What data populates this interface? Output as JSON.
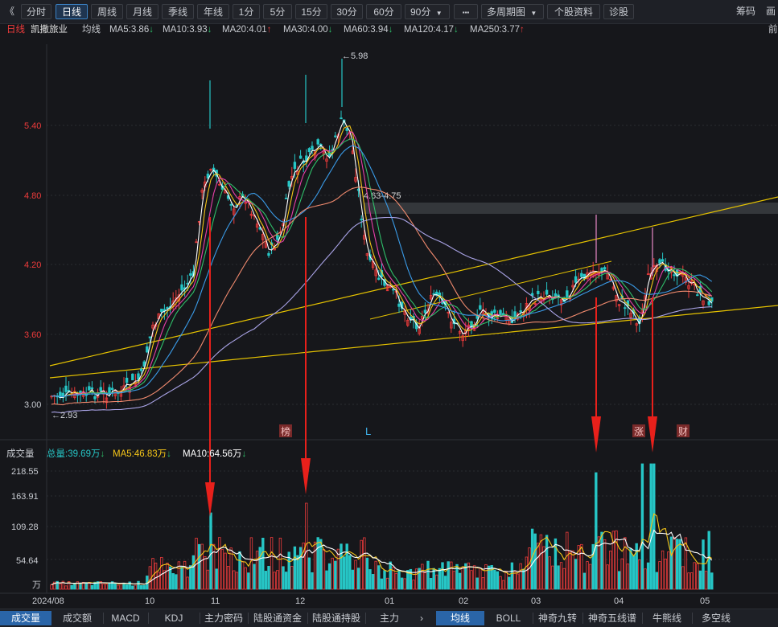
{
  "toolbar": {
    "back": "《",
    "periods": [
      "分时",
      "日线",
      "周线",
      "月线",
      "季线",
      "年线",
      "1分",
      "5分",
      "15分",
      "30分",
      "60分",
      "90分"
    ],
    "active_period_index": 1,
    "period_dropdown": "▼",
    "more_label": "▪▪▪",
    "multi_period": "多周期图",
    "stock_info": "个股资料",
    "diagnose": "诊股",
    "chips": "筹码",
    "cut_right": "画"
  },
  "header": {
    "period": "日线",
    "stock_name": "凯撒旅业",
    "ma_label": "均线",
    "ma": [
      {
        "label": "MA5:3.86",
        "dir": "down",
        "color": "#ffffff"
      },
      {
        "label": "MA10:3.93",
        "dir": "down",
        "color": "#f5c518"
      },
      {
        "label": "MA20:4.01",
        "dir": "up",
        "color": "#e63fa8"
      },
      {
        "label": "MA30:4.00",
        "dir": "down",
        "color": "#2fbf6a"
      },
      {
        "label": "MA60:3.94",
        "dir": "down",
        "color": "#3a9be8"
      },
      {
        "label": "MA120:4.17",
        "dir": "down",
        "color": "#f08a6e"
      },
      {
        "label": "MA250:3.77",
        "dir": "up",
        "color": "#a9a3e6"
      }
    ],
    "right_cut": "前"
  },
  "price_axis": [
    "5.40",
    "4.80",
    "4.20",
    "3.60",
    "3.00"
  ],
  "annotations": {
    "high": "←5.98",
    "low": "←2.93",
    "range_label": "4.63-4.75",
    "tags": [
      "榜",
      "L",
      "涨",
      "财"
    ]
  },
  "volume": {
    "title": "成交量",
    "total": "总量:39.69万",
    "ma5": "MA5:46.83万",
    "ma10": "MA10:64.56万",
    "axis": [
      "218.55",
      "163.91",
      "109.28",
      "54.64",
      "万"
    ]
  },
  "time_axis": [
    "2024/08",
    "10",
    "11",
    "12",
    "01",
    "02",
    "03",
    "04",
    "05"
  ],
  "bottom_tabs_left": [
    "成交量",
    "成交额",
    "MACD",
    "KDJ",
    "主力密码",
    "陆股通资金",
    "陆股通持股",
    "主力"
  ],
  "bottom_tabs_right": [
    "均线",
    "BOLL",
    "神奇九转",
    "神奇五线谱",
    "牛熊线",
    "多空线"
  ],
  "colors": {
    "up": "#ee3b3b",
    "down": "#26c6c6",
    "bg": "#16171b",
    "accent": "#3b82c4"
  }
}
